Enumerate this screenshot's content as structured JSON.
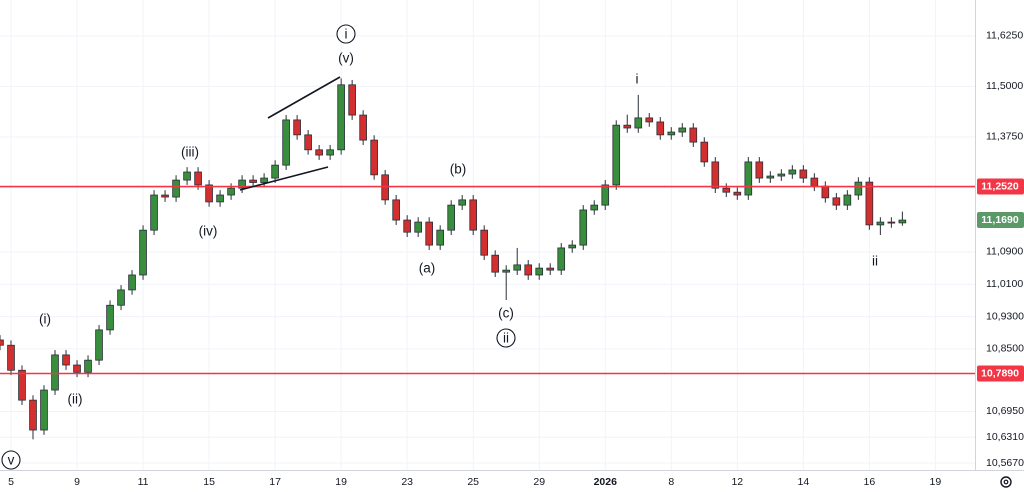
{
  "chart_data": {
    "type": "candlestick",
    "x": [
      0,
      1,
      2,
      3,
      4,
      5,
      6,
      7,
      8,
      9,
      10,
      11,
      12,
      13,
      14,
      15,
      16,
      17,
      18,
      19,
      20,
      21,
      22,
      23,
      24,
      25,
      26,
      27,
      28,
      29,
      30,
      31,
      32,
      33,
      34,
      35,
      36,
      37,
      38,
      39,
      40,
      41,
      42,
      43,
      44,
      45,
      46,
      47,
      48,
      49,
      50,
      51,
      52,
      53,
      54,
      55,
      56,
      57,
      58,
      59,
      60,
      61,
      62,
      63,
      64,
      65,
      66,
      67,
      68,
      69,
      70,
      71,
      72,
      73,
      74,
      75,
      76,
      77,
      78,
      79,
      80,
      81,
      82
    ],
    "open": [
      10.872,
      10.859,
      10.797,
      10.723,
      10.649,
      10.748,
      10.835,
      10.81,
      10.792,
      10.822,
      10.897,
      10.958,
      10.996,
      11.033,
      11.144,
      11.231,
      11.226,
      11.268,
      11.288,
      11.256,
      11.214,
      11.231,
      11.248,
      11.268,
      11.262,
      11.273,
      11.305,
      11.417,
      11.38,
      11.343,
      11.33,
      11.343,
      11.504,
      11.429,
      11.367,
      11.281,
      11.219,
      11.169,
      11.139,
      11.164,
      11.107,
      11.144,
      11.206,
      11.219,
      11.144,
      11.082,
      11.04,
      11.045,
      11.058,
      11.033,
      11.05,
      11.045,
      11.1,
      11.107,
      11.194,
      11.206,
      11.256,
      11.404,
      11.397,
      11.422,
      11.412,
      11.38,
      11.387,
      11.397,
      11.362,
      11.313,
      11.248,
      11.238,
      11.231,
      11.313,
      11.273,
      11.278,
      11.283,
      11.293,
      11.273,
      11.253,
      11.224,
      11.206,
      11.231,
      11.263,
      11.157,
      11.164,
      11.162
    ],
    "high": [
      10.884,
      10.871,
      10.809,
      10.735,
      10.76,
      10.847,
      10.847,
      10.822,
      10.834,
      10.909,
      10.97,
      11.008,
      11.045,
      11.156,
      11.243,
      11.243,
      11.28,
      11.3,
      11.3,
      11.268,
      11.243,
      11.26,
      11.28,
      11.28,
      11.285,
      11.317,
      11.429,
      11.429,
      11.392,
      11.355,
      11.355,
      11.52,
      11.516,
      11.441,
      11.379,
      11.293,
      11.231,
      11.181,
      11.176,
      11.176,
      11.156,
      11.218,
      11.231,
      11.231,
      11.156,
      11.094,
      11.057,
      11.1,
      11.07,
      11.062,
      11.062,
      11.112,
      11.119,
      11.206,
      11.218,
      11.268,
      11.416,
      11.43,
      11.479,
      11.434,
      11.424,
      11.399,
      11.409,
      11.409,
      11.374,
      11.325,
      11.26,
      11.25,
      11.325,
      11.325,
      11.29,
      11.295,
      11.305,
      11.305,
      11.285,
      11.265,
      11.236,
      11.243,
      11.275,
      11.275,
      11.176,
      11.176,
      11.19
    ],
    "low": [
      10.847,
      10.785,
      10.711,
      10.626,
      10.637,
      10.736,
      10.798,
      10.78,
      10.78,
      10.81,
      10.885,
      10.946,
      10.984,
      11.021,
      11.132,
      11.214,
      11.214,
      11.256,
      11.244,
      11.202,
      11.202,
      11.219,
      11.236,
      11.25,
      11.25,
      11.261,
      11.293,
      11.368,
      11.331,
      11.318,
      11.318,
      11.331,
      11.417,
      11.355,
      11.269,
      11.207,
      11.157,
      11.127,
      11.127,
      11.095,
      11.095,
      11.132,
      11.194,
      11.132,
      11.07,
      11.028,
      10.971,
      11.033,
      11.021,
      11.021,
      11.033,
      11.033,
      11.088,
      11.095,
      11.182,
      11.194,
      11.244,
      11.385,
      11.385,
      11.4,
      11.368,
      11.368,
      11.375,
      11.35,
      11.301,
      11.236,
      11.226,
      11.219,
      11.219,
      11.261,
      11.261,
      11.266,
      11.271,
      11.261,
      11.241,
      11.212,
      11.194,
      11.194,
      11.219,
      11.145,
      11.132,
      11.15,
      11.155
    ],
    "close": [
      10.859,
      10.797,
      10.723,
      10.649,
      10.748,
      10.835,
      10.81,
      10.792,
      10.822,
      10.897,
      10.958,
      10.996,
      11.033,
      11.144,
      11.231,
      11.226,
      11.268,
      11.288,
      11.256,
      11.214,
      11.231,
      11.248,
      11.268,
      11.262,
      11.273,
      11.305,
      11.417,
      11.38,
      11.343,
      11.33,
      11.343,
      11.504,
      11.429,
      11.367,
      11.281,
      11.219,
      11.169,
      11.139,
      11.164,
      11.107,
      11.144,
      11.206,
      11.219,
      11.144,
      11.082,
      11.04,
      11.045,
      11.058,
      11.033,
      11.05,
      11.045,
      11.1,
      11.107,
      11.194,
      11.206,
      11.256,
      11.404,
      11.397,
      11.422,
      11.412,
      11.38,
      11.387,
      11.397,
      11.362,
      11.313,
      11.248,
      11.238,
      11.231,
      11.313,
      11.273,
      11.278,
      11.283,
      11.293,
      11.273,
      11.253,
      11.224,
      11.206,
      11.231,
      11.263,
      11.157,
      11.164,
      11.162,
      11.169
    ],
    "up_color": "#388e3c",
    "down_color": "#d32f2f",
    "xlim": [
      0,
      88.6
    ],
    "xticks": [
      {
        "value": 1,
        "label": "5"
      },
      {
        "value": 7,
        "label": "9"
      },
      {
        "value": 13,
        "label": "11"
      },
      {
        "value": 19,
        "label": "15"
      },
      {
        "value": 25,
        "label": "17"
      },
      {
        "value": 31,
        "label": "19"
      },
      {
        "value": 37,
        "label": "23"
      },
      {
        "value": 43,
        "label": "25"
      },
      {
        "value": 49,
        "label": "29"
      },
      {
        "value": 55,
        "label": "2026"
      },
      {
        "value": 61,
        "label": "8"
      },
      {
        "value": 67,
        "label": "12"
      },
      {
        "value": 73,
        "label": "14"
      },
      {
        "value": 79,
        "label": "16"
      },
      {
        "value": 85,
        "label": "19"
      }
    ],
    "ylim": [
      10.55,
      11.714
    ],
    "yticks": [
      {
        "value": 11.625,
        "label": "11,6250"
      },
      {
        "value": 11.5,
        "label": "11,5000"
      },
      {
        "value": 11.375,
        "label": "11,3750"
      },
      {
        "value": 11.09,
        "label": "11,0900"
      },
      {
        "value": 11.01,
        "label": "11,0100"
      },
      {
        "value": 10.93,
        "label": "10,9300"
      },
      {
        "value": 10.85,
        "label": "10,8500"
      },
      {
        "value": 10.695,
        "label": "10,6950"
      },
      {
        "value": 10.631,
        "label": "10,6310"
      },
      {
        "value": 10.567,
        "label": "10,5670"
      }
    ],
    "grid": true,
    "levels": [
      {
        "value": 11.252,
        "label": "11,2520",
        "color": "#f23645"
      },
      {
        "value": 10.789,
        "label": "10,7890",
        "color": "#f23645"
      }
    ],
    "last_price": {
      "value": 11.169,
      "label": "11,1690",
      "color": "#5b9a68"
    },
    "annotations": [
      {
        "text": "i",
        "circled": true
      },
      {
        "text": "(v)"
      },
      {
        "text": "(iii)"
      },
      {
        "text": "(iv)"
      },
      {
        "text": "(i)"
      },
      {
        "text": "(ii)"
      },
      {
        "text": "v",
        "circled": true
      },
      {
        "text": "(b)"
      },
      {
        "text": "(a)"
      },
      {
        "text": "(c)"
      },
      {
        "text": "ii",
        "circled": true
      },
      {
        "text": "i"
      },
      {
        "text": "ii"
      }
    ]
  }
}
